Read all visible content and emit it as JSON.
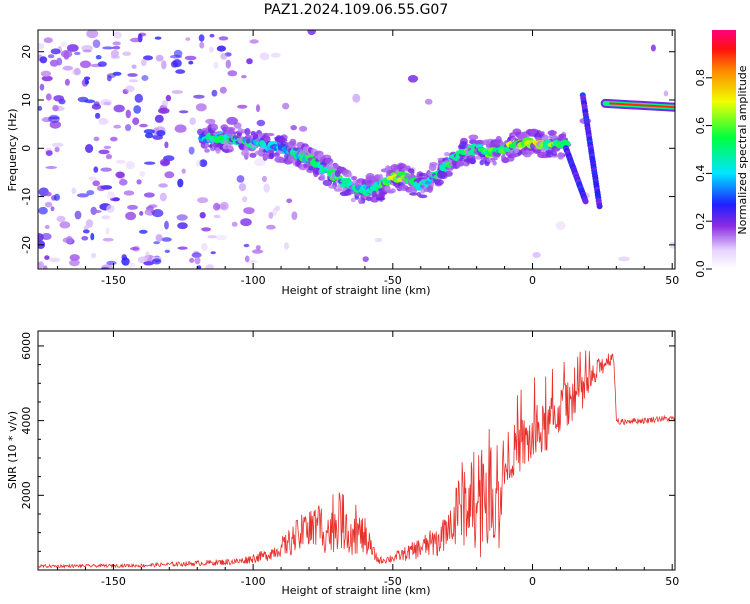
{
  "figure": {
    "title": "PAZ1.2024.109.06.55.G07"
  },
  "chart_data": [
    {
      "type": "heatmap",
      "title": "PAZ1.2024.109.06.55.G07",
      "xlabel": "Height of straight line (km)",
      "ylabel": "Frequency (Hz)",
      "xlim": [
        -177,
        51
      ],
      "ylim": [
        -25,
        24.5
      ],
      "x_ticks": [
        -150,
        -100,
        -50,
        0,
        50
      ],
      "y_ticks": [
        -20,
        -10,
        0,
        10,
        20
      ],
      "colorbar": {
        "label": "Normalized spectral amplitude",
        "range": [
          0,
          1
        ],
        "ticks": [
          0.0,
          0.2,
          0.4,
          0.6,
          0.8
        ],
        "colormap": "rainbow (white-violet-blue-cyan-green-yellow-red-magenta)"
      },
      "ridge": {
        "x": [
          -118,
          -110,
          -100,
          -90,
          -80,
          -70,
          -62,
          -55,
          -50,
          -45,
          -40,
          -35,
          -30,
          -25,
          -20,
          -15,
          -10,
          -5,
          0,
          5,
          10,
          12
        ],
        "y": [
          2,
          2,
          1,
          0,
          -2,
          -6,
          -9,
          -8,
          -6,
          -6,
          -8,
          -6,
          -3,
          -1,
          0,
          -1,
          0,
          1,
          1,
          1,
          0.5,
          0.5
        ]
      },
      "ridge_amplitude": [
        0.4,
        0.5,
        0.45,
        0.4,
        0.5,
        0.5,
        0.45,
        0.45,
        0.6,
        0.55,
        0.5,
        0.45,
        0.5,
        0.55,
        0.5,
        0.55,
        0.6,
        0.65,
        0.65,
        0.6,
        0.55,
        0.6
      ],
      "drop_segments": [
        {
          "x": [
            12,
            19
          ],
          "y": [
            0,
            -11
          ]
        },
        {
          "x": [
            18,
            24
          ],
          "y": [
            11,
            -12
          ]
        }
      ],
      "tone": {
        "x": [
          26,
          51
        ],
        "y": [
          9.3,
          8.5
        ],
        "amplitude": 0.9
      }
    },
    {
      "type": "line",
      "xlabel": "Height of straight line (km)",
      "ylabel": "SNR (10 * v/v)",
      "xlim": [
        -177,
        51
      ],
      "ylim": [
        0,
        6400
      ],
      "x_ticks": [
        -150,
        -100,
        -50,
        0,
        50
      ],
      "y_ticks": [
        2000,
        4000,
        6000
      ],
      "series": [
        {
          "color": "#e8302b",
          "x": [
            -177,
            -160,
            -140,
            -120,
            -105,
            -95,
            -90,
            -85,
            -80,
            -75,
            -72,
            -69,
            -66,
            -63,
            -60,
            -57,
            -55,
            -50,
            -45,
            -40,
            -35,
            -30,
            -25,
            -20,
            -15,
            -12,
            -8,
            -5,
            0,
            5,
            10,
            15,
            20,
            25,
            29,
            30,
            31,
            35,
            40,
            45,
            51
          ],
          "y": [
            100,
            110,
            120,
            180,
            230,
            400,
            600,
            850,
            1100,
            1150,
            1000,
            1400,
            1100,
            1000,
            900,
            450,
            250,
            320,
            450,
            600,
            750,
            1000,
            1800,
            2200,
            2300,
            2200,
            3100,
            3300,
            3500,
            3800,
            4300,
            4600,
            4950,
            5500,
            5750,
            4100,
            3950,
            4000,
            4000,
            4050,
            4050
          ],
          "noise": [
            40,
            40,
            45,
            70,
            90,
            160,
            250,
            450,
            600,
            700,
            600,
            800,
            700,
            600,
            500,
            220,
            90,
            130,
            200,
            300,
            400,
            500,
            1200,
            1500,
            1500,
            1400,
            650,
            750,
            750,
            700,
            650,
            550,
            450,
            280,
            180,
            90,
            80,
            80,
            80,
            80,
            80
          ]
        }
      ]
    }
  ]
}
